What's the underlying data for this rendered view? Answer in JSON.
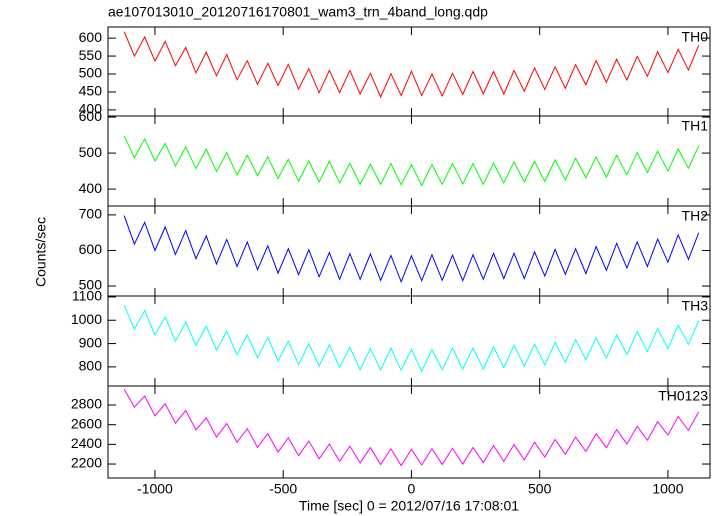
{
  "title": "ae107013010_20120716170801_wam3_trn_4band_long.qdp",
  "xlabel": "Time [sec] 0 = 2012/07/16 17:08:01",
  "ylabel": "Counts/sec",
  "xlim": [
    -1183,
    1164
  ],
  "xticks": [
    -1000,
    -500,
    0,
    500,
    1000
  ],
  "x": [
    -1120,
    -1080,
    -1040,
    -1000,
    -960,
    -920,
    -880,
    -840,
    -800,
    -760,
    -720,
    -680,
    -640,
    -600,
    -560,
    -520,
    -480,
    -440,
    -400,
    -360,
    -320,
    -280,
    -240,
    -200,
    -160,
    -120,
    -80,
    -40,
    0,
    40,
    80,
    120,
    160,
    200,
    240,
    280,
    320,
    360,
    400,
    440,
    480,
    520,
    560,
    600,
    640,
    680,
    720,
    760,
    800,
    840,
    880,
    920,
    960,
    1000,
    1040,
    1080,
    1120
  ],
  "chart_data": [
    {
      "type": "line",
      "ylim": [
        383,
        631
      ],
      "yticks": [
        400,
        450,
        500,
        550,
        600
      ],
      "series": [
        {
          "name": "TH0",
          "color": "#ff0000",
          "values": [
            618,
            550,
            603,
            536,
            591,
            523,
            574,
            503,
            561,
            495,
            554,
            484,
            537,
            471,
            530,
            468,
            527,
            458,
            515,
            448,
            510,
            448,
            510,
            444,
            502,
            436,
            501,
            440,
            508,
            440,
            500,
            439,
            502,
            443,
            507,
            445,
            507,
            444,
            510,
            452,
            517,
            457,
            520,
            460,
            526,
            470,
            537,
            477,
            541,
            483,
            549,
            494,
            562,
            504,
            569,
            511,
            580
          ]
        }
      ]
    },
    {
      "type": "line",
      "ylim": [
        353,
        603
      ],
      "yticks": [
        400,
        500,
        600
      ],
      "series": [
        {
          "name": "TH1",
          "color": "#00ff00",
          "values": [
            548,
            487,
            539,
            478,
            527,
            464,
            517,
            457,
            511,
            449,
            501,
            439,
            494,
            437,
            490,
            429,
            483,
            422,
            478,
            420,
            477,
            417,
            472,
            413,
            469,
            413,
            471,
            412,
            468,
            410,
            468,
            413,
            471,
            414,
            471,
            413,
            472,
            417,
            476,
            420,
            477,
            421,
            481,
            426,
            486,
            431,
            489,
            433,
            494,
            440,
            501,
            446,
            505,
            450,
            511,
            458,
            520
          ]
        }
      ]
    },
    {
      "type": "line",
      "ylim": [
        472,
        725
      ],
      "yticks": [
        500,
        600,
        700
      ],
      "series": [
        {
          "name": "TH2",
          "color": "#0000ff",
          "values": [
            698,
            618,
            679,
            600,
            666,
            589,
            656,
            577,
            641,
            562,
            631,
            555,
            624,
            546,
            613,
            536,
            605,
            532,
            602,
            526,
            594,
            519,
            591,
            519,
            590,
            516,
            586,
            512,
            585,
            515,
            588,
            516,
            587,
            515,
            588,
            519,
            592,
            521,
            592,
            521,
            596,
            528,
            603,
            533,
            605,
            535,
            611,
            544,
            620,
            551,
            624,
            555,
            632,
            567,
            644,
            575,
            650
          ]
        }
      ]
    },
    {
      "type": "line",
      "ylim": [
        718,
        1104
      ],
      "yticks": [
        800,
        900,
        1000,
        1100
      ],
      "series": [
        {
          "name": "TH3",
          "color": "#00ffff",
          "values": [
            1065,
            962,
            1041,
            937,
            1014,
            910,
            992,
            893,
            975,
            872,
            954,
            852,
            937,
            839,
            926,
            826,
            910,
            810,
            899,
            804,
            894,
            798,
            884,
            788,
            878,
            787,
            880,
            785,
            875,
            782,
            875,
            787,
            881,
            790,
            881,
            790,
            886,
            797,
            893,
            803,
            898,
            808,
            905,
            820,
            917,
            830,
            925,
            838,
            937,
            853,
            952,
            866,
            964,
            878,
            979,
            896,
            998
          ]
        }
      ]
    },
    {
      "type": "line",
      "ylim": [
        2058,
        2993
      ],
      "yticks": [
        2200,
        2400,
        2600,
        2800
      ],
      "series": [
        {
          "name": "TH0123",
          "color": "#ff00ff",
          "values": [
            2960,
            2778,
            2891,
            2689,
            2812,
            2615,
            2744,
            2547,
            2670,
            2474,
            2613,
            2421,
            2560,
            2369,
            2508,
            2322,
            2466,
            2285,
            2434,
            2253,
            2403,
            2227,
            2382,
            2211,
            2366,
            2195,
            2355,
            2185,
            2350,
            2190,
            2355,
            2195,
            2360,
            2199,
            2369,
            2214,
            2388,
            2228,
            2398,
            2242,
            2421,
            2271,
            2450,
            2299,
            2474,
            2328,
            2507,
            2366,
            2550,
            2404,
            2583,
            2442,
            2630,
            2494,
            2683,
            2542,
            2730
          ]
        }
      ]
    }
  ]
}
